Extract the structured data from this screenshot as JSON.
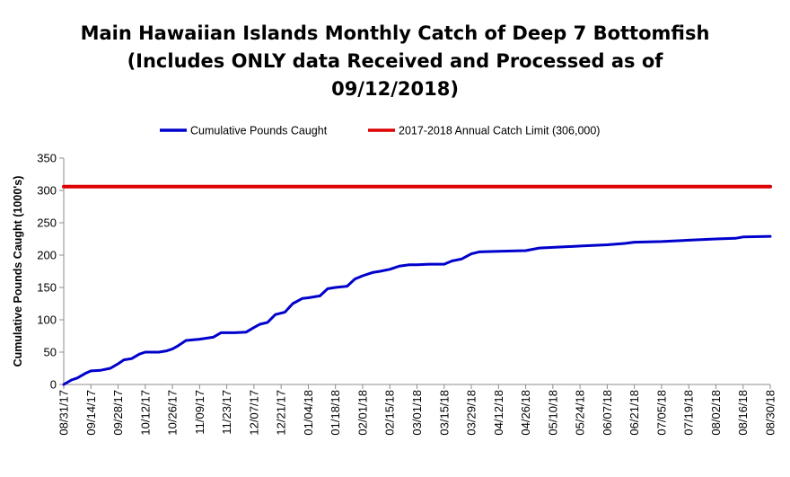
{
  "chart_data": {
    "type": "line",
    "title_lines": [
      "Main Hawaiian Islands Monthly Catch of Deep 7 Bottomfish",
      "(Includes ONLY data Received and Processed as of",
      "09/12/2018)"
    ],
    "ylabel": "Cumulative Pounds Caught (1000's)",
    "xlabel": "",
    "ylim": [
      0,
      350
    ],
    "yticks": [
      0,
      50,
      100,
      150,
      200,
      250,
      300,
      350
    ],
    "grid": false,
    "legend_position": "top-center",
    "categories": [
      "08/31/17",
      "09/14/17",
      "09/28/17",
      "10/12/17",
      "10/26/17",
      "11/09/17",
      "11/23/17",
      "12/07/17",
      "12/21/17",
      "01/04/18",
      "01/18/18",
      "02/01/18",
      "02/15/18",
      "03/01/18",
      "03/15/18",
      "03/29/18",
      "04/12/18",
      "04/26/18",
      "05/10/18",
      "05/24/18",
      "06/07/18",
      "06/21/18",
      "07/05/18",
      "07/19/18",
      "08/02/18",
      "08/16/18",
      "08/30/18"
    ],
    "series": [
      {
        "name": "Cumulative Pounds Caught",
        "color": "#0000cc",
        "points": [
          [
            "08/31/17",
            0
          ],
          [
            "09/04/17",
            7
          ],
          [
            "09/07/17",
            10
          ],
          [
            "09/11/17",
            17
          ],
          [
            "09/14/17",
            21
          ],
          [
            "09/19/17",
            22
          ],
          [
            "09/24/17",
            25
          ],
          [
            "09/28/17",
            32
          ],
          [
            "10/01/17",
            38
          ],
          [
            "10/05/17",
            40
          ],
          [
            "10/09/17",
            47
          ],
          [
            "10/12/17",
            50
          ],
          [
            "10/19/17",
            50
          ],
          [
            "10/23/17",
            52
          ],
          [
            "10/26/17",
            55
          ],
          [
            "10/29/17",
            60
          ],
          [
            "11/02/17",
            68
          ],
          [
            "11/09/17",
            70
          ],
          [
            "11/16/17",
            73
          ],
          [
            "11/20/17",
            80
          ],
          [
            "11/27/17",
            80
          ],
          [
            "12/03/17",
            81
          ],
          [
            "12/07/17",
            88
          ],
          [
            "12/10/17",
            93
          ],
          [
            "12/14/17",
            96
          ],
          [
            "12/18/17",
            108
          ],
          [
            "12/23/17",
            112
          ],
          [
            "12/27/17",
            125
          ],
          [
            "01/01/18",
            133
          ],
          [
            "01/04/18",
            134
          ],
          [
            "01/10/18",
            137
          ],
          [
            "01/14/18",
            148
          ],
          [
            "01/18/18",
            150
          ],
          [
            "01/24/18",
            152
          ],
          [
            "01/28/18",
            163
          ],
          [
            "02/01/18",
            168
          ],
          [
            "02/06/18",
            173
          ],
          [
            "02/10/18",
            175
          ],
          [
            "02/15/18",
            178
          ],
          [
            "02/20/18",
            183
          ],
          [
            "02/25/18",
            185
          ],
          [
            "03/01/18",
            185
          ],
          [
            "03/07/18",
            186
          ],
          [
            "03/15/18",
            186
          ],
          [
            "03/19/18",
            191
          ],
          [
            "03/24/18",
            194
          ],
          [
            "03/29/18",
            202
          ],
          [
            "04/02/18",
            205
          ],
          [
            "04/12/18",
            206
          ],
          [
            "04/26/18",
            207
          ],
          [
            "05/03/18",
            211
          ],
          [
            "05/10/18",
            212
          ],
          [
            "05/24/18",
            214
          ],
          [
            "06/07/18",
            216
          ],
          [
            "06/16/18",
            218
          ],
          [
            "06/21/18",
            220
          ],
          [
            "07/05/18",
            221
          ],
          [
            "07/19/18",
            223
          ],
          [
            "08/02/18",
            225
          ],
          [
            "08/12/18",
            226
          ],
          [
            "08/16/18",
            228
          ],
          [
            "08/30/18",
            229
          ]
        ]
      },
      {
        "name": "2017-2018 Annual Catch Limit (306,000)",
        "color": "#dd0000",
        "points": [
          [
            "08/31/17",
            306
          ],
          [
            "08/30/18",
            306
          ]
        ]
      }
    ]
  }
}
